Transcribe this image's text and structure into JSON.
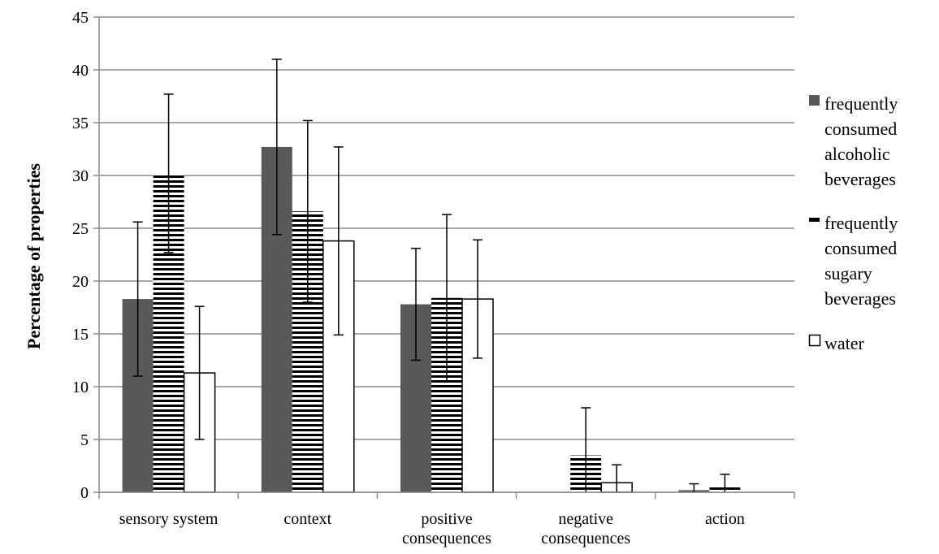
{
  "chart_data": {
    "type": "bar",
    "title": "",
    "xlabel": "",
    "ylabel": "Percentage of properties",
    "ylim": [
      0,
      45
    ],
    "yticks": [
      0,
      5,
      10,
      15,
      20,
      25,
      30,
      35,
      40,
      45
    ],
    "grid": true,
    "legend_position": "right",
    "categories": [
      [
        "sensory system"
      ],
      [
        "context"
      ],
      [
        "positive",
        "consequences"
      ],
      [
        "negative",
        "consequences"
      ],
      [
        "action"
      ]
    ],
    "series": [
      {
        "name": [
          "frequently",
          "consumed",
          "alcoholic",
          "beverages"
        ],
        "pattern": "solid",
        "color": "#595959",
        "values": [
          18.3,
          32.7,
          17.8,
          0.0,
          0.2
        ],
        "errors": [
          7.3,
          8.3,
          5.3,
          0.0,
          0.6
        ]
      },
      {
        "name": [
          "frequently",
          "consumed",
          "sugary",
          "beverages"
        ],
        "pattern": "horizontal-stripes",
        "color": "#000000",
        "values": [
          30.2,
          26.6,
          18.4,
          3.5,
          0.6
        ],
        "errors": [
          7.5,
          8.6,
          7.9,
          4.5,
          1.1
        ]
      },
      {
        "name": [
          "water"
        ],
        "pattern": "hollow",
        "color": "#ffffff",
        "values": [
          11.3,
          23.8,
          18.3,
          0.9,
          0.0
        ],
        "errors": [
          6.3,
          8.9,
          5.6,
          1.7,
          0.0
        ]
      }
    ]
  }
}
